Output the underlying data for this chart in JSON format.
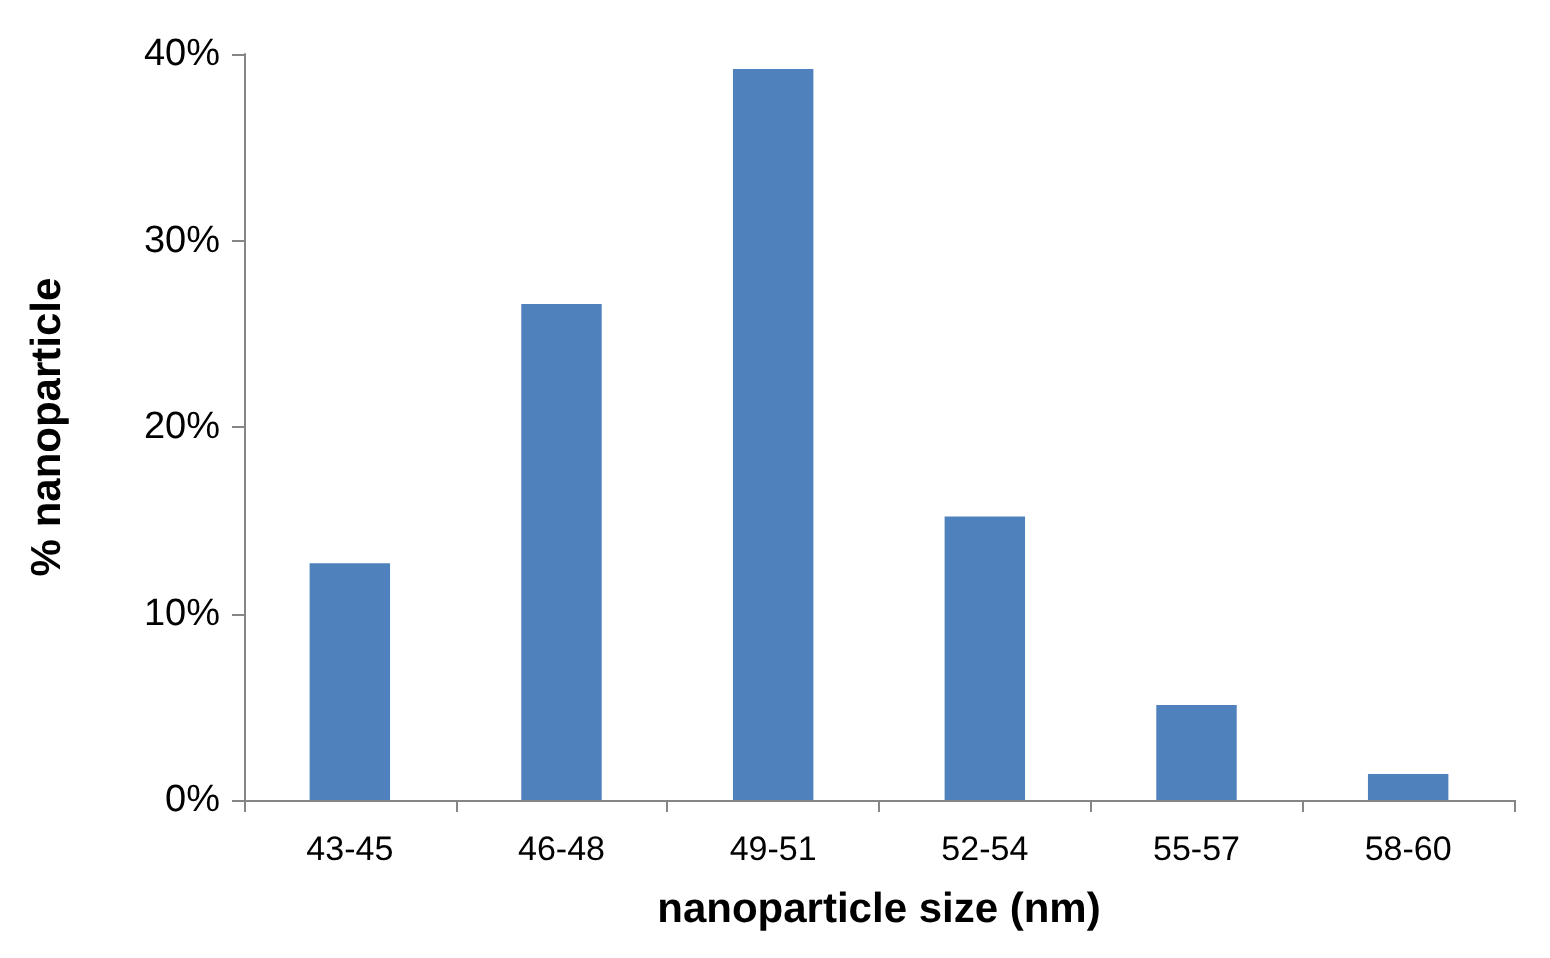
{
  "chart_data": {
    "type": "bar",
    "xlabel": "nanoparticle size (nm)",
    "ylabel": "% nanoparticle",
    "categories": [
      "43-45",
      "46-48",
      "49-51",
      "52-54",
      "55-57",
      "58-60"
    ],
    "values": [
      12.7,
      26.6,
      39.2,
      15.2,
      5.1,
      1.4
    ],
    "color": "#4f81bd",
    "ylim": [
      0,
      40
    ],
    "yticks": [
      {
        "value": 0,
        "label": "0%"
      },
      {
        "value": 10,
        "label": "10%"
      },
      {
        "value": 20,
        "label": "20%"
      },
      {
        "value": 30,
        "label": "30%"
      },
      {
        "value": 40,
        "label": "40%"
      }
    ],
    "grid": false
  }
}
